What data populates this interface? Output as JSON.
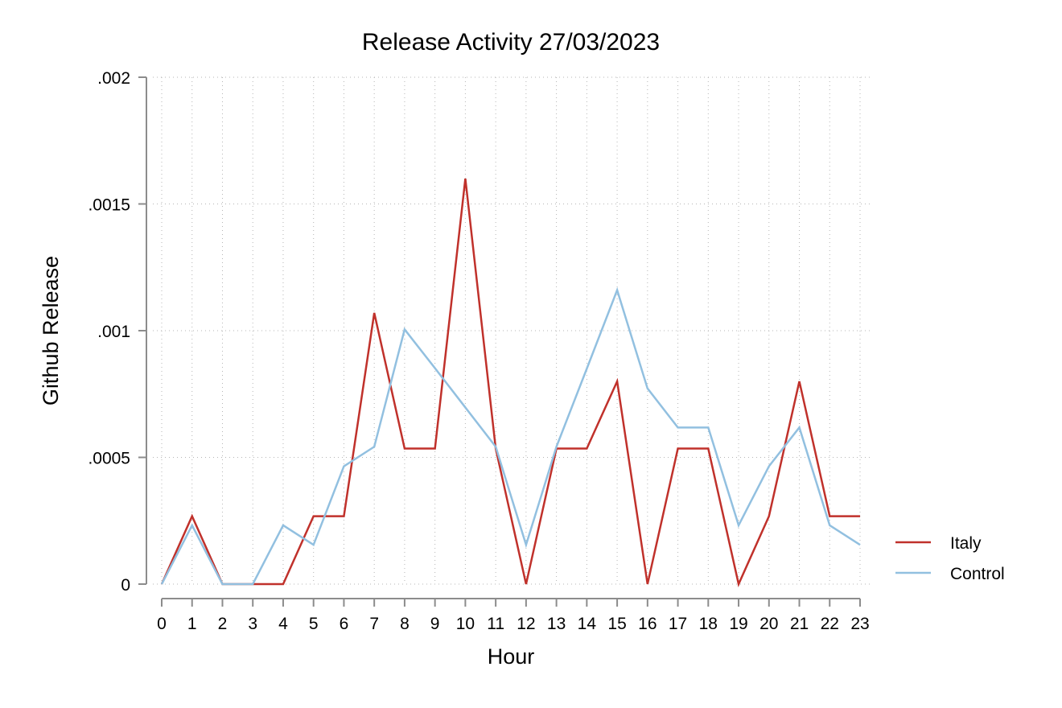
{
  "chart_data": {
    "type": "line",
    "title": "Release Activity 27/03/2023",
    "xlabel": "Hour",
    "ylabel": "Github Release",
    "x": [
      0,
      1,
      2,
      3,
      4,
      5,
      6,
      7,
      8,
      9,
      10,
      11,
      12,
      13,
      14,
      15,
      16,
      17,
      18,
      19,
      20,
      21,
      22,
      23
    ],
    "x_tick_labels": [
      "0",
      "1",
      "2",
      "3",
      "4",
      "5",
      "6",
      "7",
      "8",
      "9",
      "10",
      "11",
      "12",
      "13",
      "14",
      "15",
      "16",
      "17",
      "18",
      "19",
      "20",
      "21",
      "22",
      "23"
    ],
    "xlim": [
      0,
      23
    ],
    "ylim": [
      0,
      0.002
    ],
    "y_ticks": [
      0,
      0.0005,
      0.001,
      0.0015,
      0.002
    ],
    "y_tick_labels": [
      "0",
      ".0005",
      ".001",
      ".0015",
      ".002"
    ],
    "grid": true,
    "legend_position": "right",
    "series": [
      {
        "name": "Italy",
        "color": "#c0312b",
        "values": [
          0,
          0.000268,
          0,
          0,
          0,
          0.000268,
          0.000268,
          0.00107,
          0.000535,
          0.000535,
          0.0016,
          0.000535,
          0,
          0.000535,
          0.000535,
          0.0008,
          0,
          0.000535,
          0.000535,
          0,
          0.000268,
          0.0008,
          0.000268,
          0.000268
        ]
      },
      {
        "name": "Control",
        "color": "#92c0e0",
        "values": [
          0,
          0.000232,
          0,
          0,
          0.000232,
          0.000155,
          0.000465,
          0.000542,
          0.001005,
          0.000852,
          0.000697,
          0.000542,
          0.000155,
          0.000542,
          0.00085,
          0.00116,
          0.000772,
          0.000618,
          0.000618,
          0.000232,
          0.000465,
          0.000618,
          0.000232,
          0.000155
        ]
      }
    ]
  }
}
